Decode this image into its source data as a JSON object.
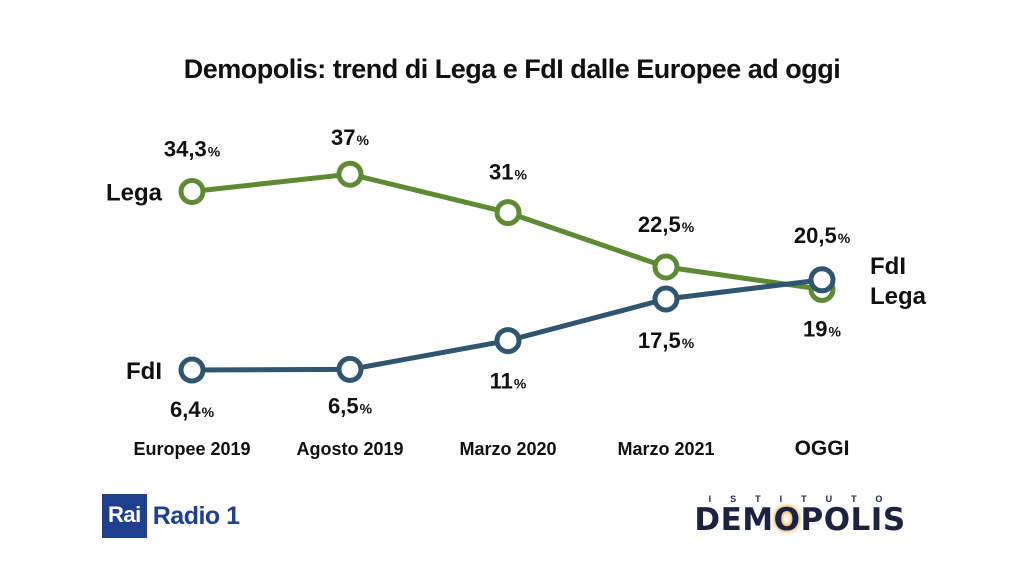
{
  "title": "Demopolis: trend di Lega e FdI dalle Europee ad oggi",
  "colors": {
    "lega": "#5e8a34",
    "fdi": "#2f5570"
  },
  "chart_data": {
    "type": "line",
    "title": "Demopolis: trend di Lega e FdI dalle Europee ad oggi",
    "categories": [
      "Europee 2019",
      "Agosto 2019",
      "Marzo 2020",
      "Marzo 2021",
      "OGGI"
    ],
    "unit": "%",
    "series": [
      {
        "name": "Lega",
        "values": [
          34.3,
          37,
          31,
          22.5,
          19
        ],
        "labels": [
          "34,3",
          "37",
          "31",
          "22,5",
          "19"
        ]
      },
      {
        "name": "FdI",
        "values": [
          6.4,
          6.5,
          11,
          17.5,
          20.5
        ],
        "labels": [
          "6,4",
          "6,5",
          "11",
          "17,5",
          "20,5"
        ]
      }
    ],
    "end_labels": [
      "FdI",
      "Lega"
    ],
    "grid": false,
    "legend": "none"
  },
  "logos": {
    "rai_box": "Rai",
    "rai_text": "Radio 1",
    "demo_top": "ISTITUTO",
    "demo_main_a": "DEM",
    "demo_main_o": "O",
    "demo_main_b": "POLIS"
  }
}
